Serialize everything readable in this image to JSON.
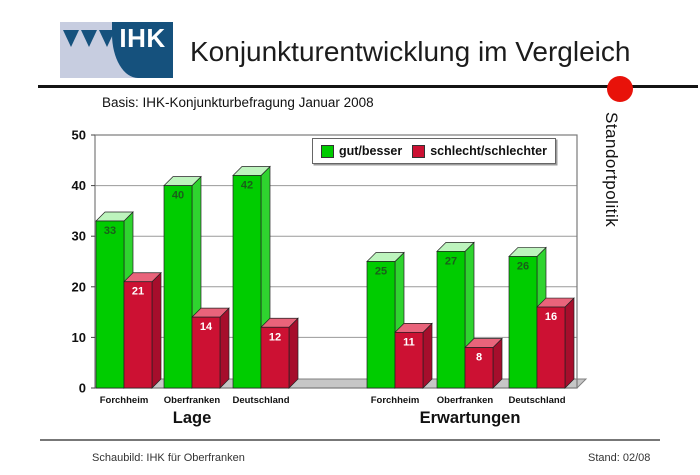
{
  "header": {
    "logo_text": "IHK",
    "title": "Konjunkturentwicklung im Vergleich",
    "accent_dot_color": "#e8120a"
  },
  "subtitle": "Basis: IHK-Konjunkturbefragung Januar 2008",
  "side_label": "Standortpolitik",
  "footer": {
    "left": "Schaubild: IHK für Oberfranken",
    "right": "Stand: 02/08"
  },
  "chart_data": {
    "type": "bar",
    "style": "3d-column",
    "ylim": [
      0,
      50
    ],
    "yticks": [
      0,
      10,
      20,
      30,
      40,
      50
    ],
    "grid": true,
    "legend_position": "top-right-inside",
    "groups": [
      "Lage",
      "Erwartungen"
    ],
    "categories": [
      "Forchheim",
      "Oberfranken",
      "Deutschland"
    ],
    "series": [
      {
        "name": "gut/besser",
        "color": "#00cc00",
        "top_color": "#bdf4bd",
        "side_color": "#2fd42f",
        "label_color": "#1a5e1a",
        "values": {
          "Lage": [
            33,
            40,
            42
          ],
          "Erwartungen": [
            25,
            27,
            26
          ]
        }
      },
      {
        "name": "schlecht/schlechter",
        "color": "#cc1133",
        "top_color": "#e9647b",
        "side_color": "#a60e2c",
        "label_color": "#ffffff",
        "values": {
          "Lage": [
            21,
            14,
            12
          ],
          "Erwartungen": [
            11,
            8,
            16
          ]
        }
      }
    ]
  }
}
